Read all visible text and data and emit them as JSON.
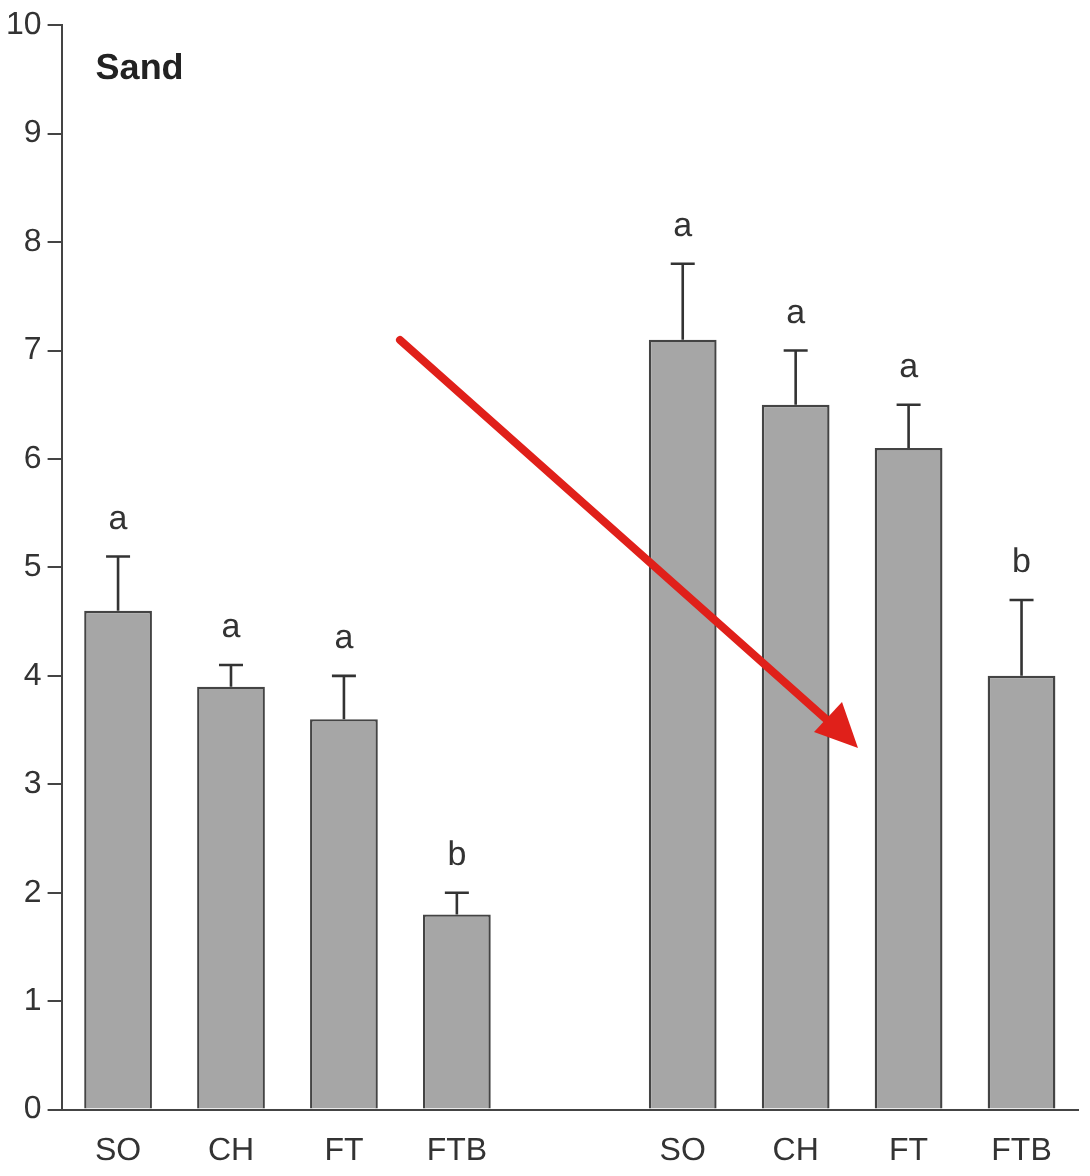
{
  "chart_data": {
    "type": "bar",
    "title": "Sand",
    "categories": [
      "SO",
      "CH",
      "FT",
      "FTB",
      null,
      "SO",
      "CH",
      "FT",
      "FTB"
    ],
    "values": [
      4.6,
      3.9,
      3.6,
      1.8,
      null,
      7.1,
      6.5,
      6.1,
      4.0
    ],
    "errors": [
      [
        4.6,
        5.1
      ],
      [
        3.9,
        4.1
      ],
      [
        3.6,
        4.0
      ],
      [
        1.8,
        2.0
      ],
      null,
      [
        7.1,
        7.8
      ],
      [
        6.5,
        7.0
      ],
      [
        6.1,
        6.5
      ],
      [
        4.0,
        4.7
      ]
    ],
    "value_labels": [
      "a",
      "a",
      "a",
      "b",
      null,
      "a",
      "a",
      "a",
      "b"
    ],
    "color": "#a6a6a6",
    "ylim": [
      0,
      10
    ],
    "yticks": [
      0,
      1,
      2,
      3,
      4,
      5,
      6,
      7,
      8,
      9,
      10
    ],
    "grid": false,
    "legend": false
  }
}
